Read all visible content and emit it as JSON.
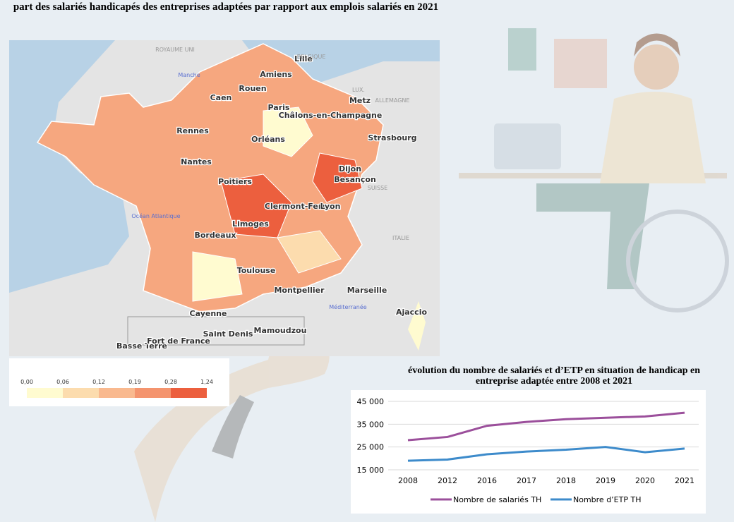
{
  "title": "part des salariés handicapés des entreprises adaptées par rapport aux emplois salariés en 2021",
  "map": {
    "cities": [
      "Lille",
      "Amiens",
      "Rouen",
      "Caen",
      "Paris",
      "Metz",
      "Châlons-en-Champagne",
      "Strasbourg",
      "Rennes",
      "Orléans",
      "Nantes",
      "Dijon",
      "Besançon",
      "Poitiers",
      "Clermont-Ferra",
      "Lyon",
      "Limoges",
      "Bordeaux",
      "Toulouse",
      "Montpellier",
      "Marseille",
      "Ajaccio",
      "Cayenne",
      "Basse Terre",
      "Fort de France",
      "Saint Denis",
      "Mamoudzou"
    ],
    "places": [
      "ROYAUME UNI",
      "BELGIQUE",
      "LUX.",
      "ALLEMAGNE",
      "SUISSE",
      "ITALIE",
      "Manche",
      "Océan Atlantique",
      "Méditerranée"
    ]
  },
  "legend": {
    "ticks": [
      {
        "value": 0,
        "label": "0,00"
      },
      {
        "value": 0.06,
        "label": "0,06"
      },
      {
        "value": 0.12,
        "label": "0,12"
      },
      {
        "value": 0.19,
        "label": "0,19"
      },
      {
        "value": 0.28,
        "label": "0,28"
      },
      {
        "value": 1.24,
        "label": "1,24"
      }
    ],
    "colors": [
      "#fffbd0",
      "#fcdcae",
      "#f9b98f",
      "#f4946e",
      "#ec5f3e"
    ]
  },
  "chart_data": {
    "type": "line",
    "title": "évolution du nombre de salariés et d’ETP en situation de handicap en entreprise adaptée entre 2008 et 2021",
    "categories": [
      "2008",
      "2012",
      "2016",
      "2017",
      "2018",
      "2019",
      "2020",
      "2021"
    ],
    "series": [
      {
        "name": "Nombre de salariés TH",
        "color": "#9b4f9b",
        "values": [
          28000,
          29400,
          34300,
          36000,
          37200,
          37800,
          38400,
          40000
        ]
      },
      {
        "name": "Nombre d’ETP TH",
        "color": "#3d8bcb",
        "values": [
          19000,
          19500,
          21800,
          23000,
          23800,
          25000,
          22700,
          24300
        ]
      }
    ],
    "ylim": [
      15000,
      45000
    ],
    "yticks": [
      {
        "value": 15000,
        "label": "15 000"
      },
      {
        "value": 25000,
        "label": "25 000"
      },
      {
        "value": 35000,
        "label": "35 000"
      },
      {
        "value": 45000,
        "label": "45 000"
      }
    ],
    "grid": true
  }
}
